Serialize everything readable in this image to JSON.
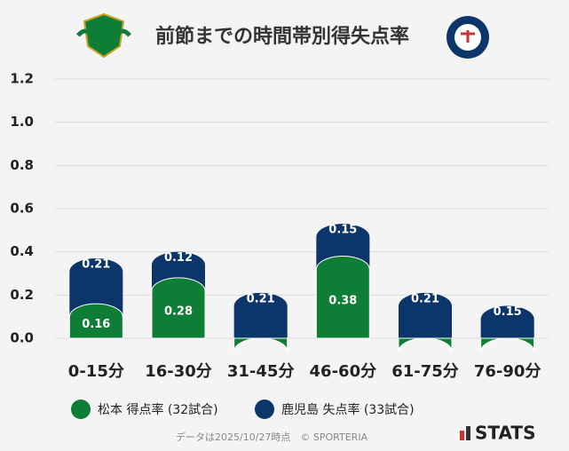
{
  "chart_data": {
    "type": "stacked_bar",
    "title": "前節までの時間帯別得失点率",
    "categories": [
      "0-15分",
      "16-30分",
      "31-45分",
      "46-60分",
      "61-75分",
      "76-90分"
    ],
    "series": [
      {
        "name": "松本 得点率 (32試合)",
        "color": "#0e7d36",
        "values": [
          0.16,
          0.28,
          0,
          0.38,
          0,
          0
        ]
      },
      {
        "name": "鹿児島 失点率 (33試合)",
        "color": "#0c356a",
        "values": [
          0.21,
          0.12,
          0.21,
          0.15,
          0.21,
          0.15
        ]
      }
    ],
    "ylim": [
      0,
      1.2
    ],
    "yticks": [
      {
        "value": 0,
        "label": "0.0"
      },
      {
        "value": 0.2,
        "label": "0.2"
      },
      {
        "value": 0.4,
        "label": "0.4"
      },
      {
        "value": 0.6,
        "label": "0.6"
      },
      {
        "value": 0.8,
        "label": "0.8"
      },
      {
        "value": 1.0,
        "label": "1.0"
      },
      {
        "value": 1.2,
        "label": "1.2"
      }
    ],
    "grid": true,
    "legend": "bottom",
    "note": "データは2025/10/27時点　© SPORTERIA",
    "brand": "STATS"
  }
}
